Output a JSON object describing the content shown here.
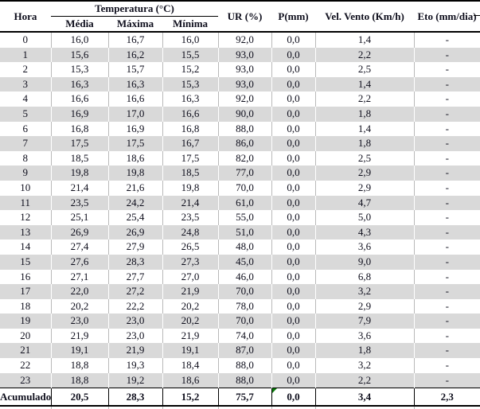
{
  "table": {
    "header": {
      "hora": "Hora",
      "temperatura_group": "Temperatura (°C)",
      "temp_sub": [
        "Média",
        "Máxima",
        "Mínima"
      ],
      "ur": "UR (%)",
      "p": "P(mm)",
      "vento": "Vel. Vento (Km/h)",
      "eto": "Eto (mm/dia)"
    },
    "rows": [
      [
        "0",
        "16,0",
        "16,7",
        "16,0",
        "92,0",
        "0,0",
        "1,4",
        "-"
      ],
      [
        "1",
        "15,6",
        "16,2",
        "15,5",
        "93,0",
        "0,0",
        "2,2",
        "-"
      ],
      [
        "2",
        "15,3",
        "15,7",
        "15,2",
        "93,0",
        "0,0",
        "2,5",
        "-"
      ],
      [
        "3",
        "16,3",
        "16,3",
        "15,3",
        "93,0",
        "0,0",
        "1,4",
        "-"
      ],
      [
        "4",
        "16,6",
        "16,6",
        "16,3",
        "92,0",
        "0,0",
        "2,2",
        "-"
      ],
      [
        "5",
        "16,9",
        "17,0",
        "16,6",
        "90,0",
        "0,0",
        "1,8",
        "-"
      ],
      [
        "6",
        "16,8",
        "16,9",
        "16,8",
        "88,0",
        "0,0",
        "1,4",
        "-"
      ],
      [
        "7",
        "17,5",
        "17,5",
        "16,7",
        "86,0",
        "0,0",
        "1,8",
        "-"
      ],
      [
        "8",
        "18,5",
        "18,6",
        "17,5",
        "82,0",
        "0,0",
        "2,5",
        "-"
      ],
      [
        "9",
        "19,8",
        "19,8",
        "18,5",
        "77,0",
        "0,0",
        "2,9",
        "-"
      ],
      [
        "10",
        "21,4",
        "21,6",
        "19,8",
        "70,0",
        "0,0",
        "2,9",
        "-"
      ],
      [
        "11",
        "23,5",
        "24,2",
        "21,4",
        "61,0",
        "0,0",
        "4,7",
        "-"
      ],
      [
        "12",
        "25,1",
        "25,4",
        "23,5",
        "55,0",
        "0,0",
        "5,0",
        "-"
      ],
      [
        "13",
        "26,9",
        "26,9",
        "24,8",
        "51,0",
        "0,0",
        "4,3",
        "-"
      ],
      [
        "14",
        "27,4",
        "27,9",
        "26,5",
        "48,0",
        "0,0",
        "3,6",
        "-"
      ],
      [
        "15",
        "27,6",
        "28,3",
        "27,3",
        "45,0",
        "0,0",
        "9,0",
        "-"
      ],
      [
        "16",
        "27,1",
        "27,7",
        "27,0",
        "46,0",
        "0,0",
        "6,8",
        "-"
      ],
      [
        "17",
        "22,0",
        "27,2",
        "21,9",
        "70,0",
        "0,0",
        "3,2",
        "-"
      ],
      [
        "18",
        "20,2",
        "22,2",
        "20,2",
        "78,0",
        "0,0",
        "2,9",
        "-"
      ],
      [
        "19",
        "23,0",
        "23,0",
        "20,2",
        "70,0",
        "0,0",
        "7,9",
        "-"
      ],
      [
        "20",
        "21,9",
        "23,0",
        "21,9",
        "74,0",
        "0,0",
        "3,6",
        "-"
      ],
      [
        "21",
        "19,1",
        "21,9",
        "19,1",
        "87,0",
        "0,0",
        "1,8",
        "-"
      ],
      [
        "22",
        "18,8",
        "19,3",
        "18,4",
        "88,0",
        "0,0",
        "3,2",
        "-"
      ],
      [
        "23",
        "18,8",
        "19,2",
        "18,6",
        "88,0",
        "0,0",
        "2,2",
        "-"
      ]
    ],
    "acumulado": {
      "label": "Acumulado",
      "values": [
        "20,5",
        "28,3",
        "15,2",
        "75,7",
        "0,0",
        "3,4",
        "2,3"
      ]
    },
    "colors": {
      "stripe_gray": "#d9d9d9",
      "separator_gray": "#b9b9b9",
      "border_black": "#000000",
      "error_indicator_green": "#0a7a0a",
      "text": "#0e0e1c"
    }
  }
}
